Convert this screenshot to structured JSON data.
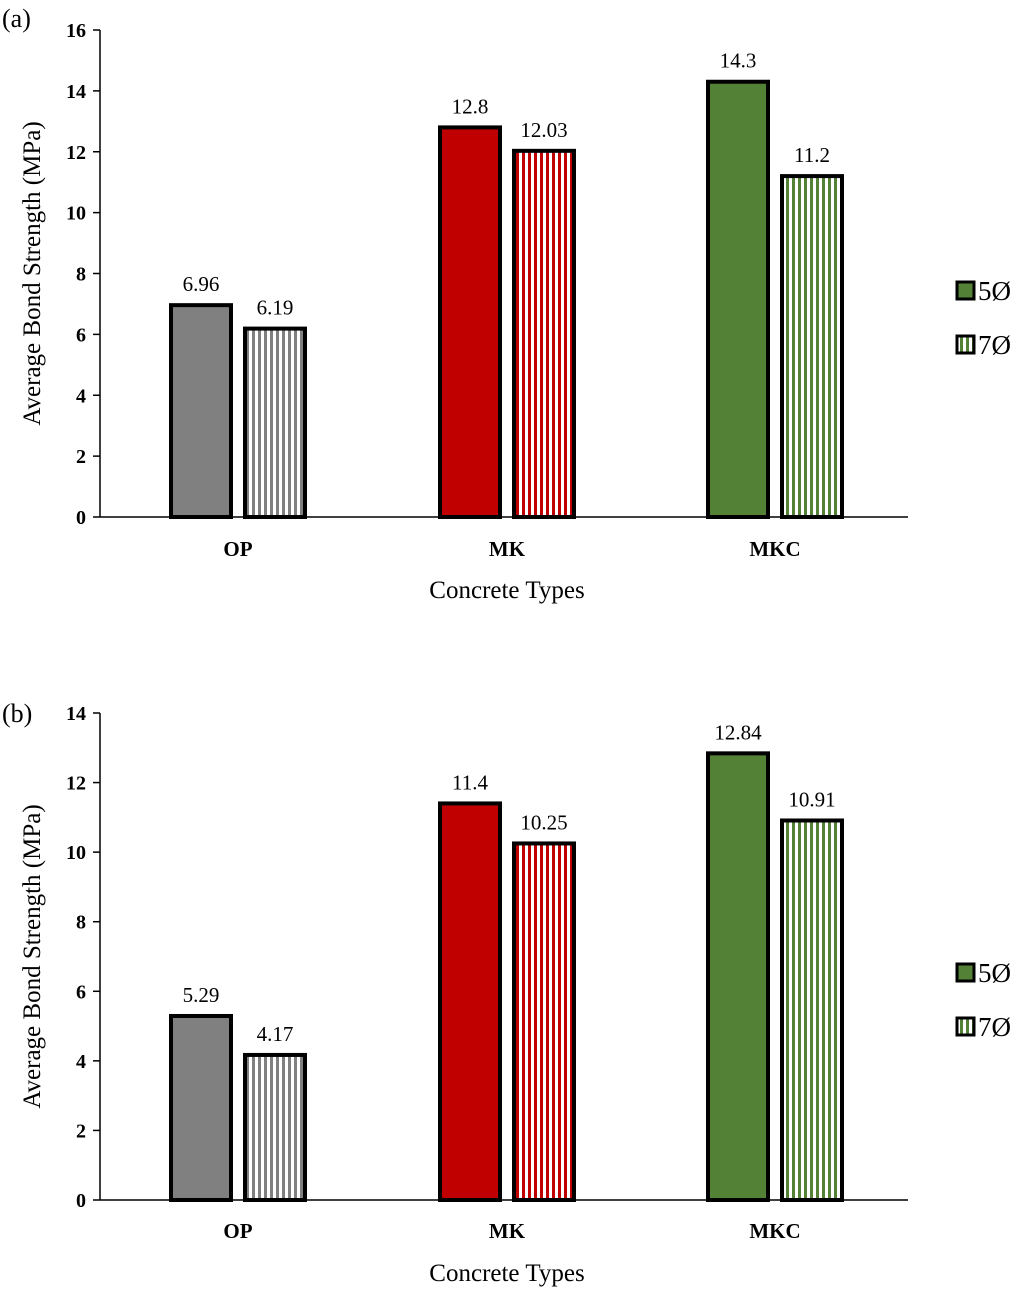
{
  "chart_data": [
    {
      "panel_label": "(a)",
      "type": "bar",
      "categories": [
        "OP",
        "MK",
        "MKC"
      ],
      "series": [
        {
          "name": "5Ø",
          "values": [
            6.96,
            12.8,
            14.3
          ]
        },
        {
          "name": "7Ø",
          "values": [
            6.19,
            12.03,
            11.2
          ]
        }
      ],
      "data_labels": [
        [
          "6.96",
          "12.8",
          "14.3"
        ],
        [
          "6.19",
          "12.03",
          "11.2"
        ]
      ],
      "xlabel": "Concrete Types",
      "ylabel": "Average Bond Strength (MPa)",
      "ylim": [
        0,
        16
      ],
      "yticks": [
        0,
        2,
        4,
        6,
        8,
        10,
        12,
        14,
        16
      ],
      "grid": false,
      "legend_position": "right"
    },
    {
      "panel_label": "(b)",
      "type": "bar",
      "categories": [
        "OP",
        "MK",
        "MKC"
      ],
      "series": [
        {
          "name": "5Ø",
          "values": [
            5.29,
            11.4,
            12.84
          ]
        },
        {
          "name": "7Ø",
          "values": [
            4.17,
            10.25,
            10.91
          ]
        }
      ],
      "data_labels": [
        [
          "5.29",
          "11.4",
          "12.84"
        ],
        [
          "4.17",
          "10.25",
          "10.91"
        ]
      ],
      "xlabel": "Concrete Types",
      "ylabel": "Average Bond Strength (MPa)",
      "ylim": [
        0,
        14
      ],
      "yticks": [
        0,
        2,
        4,
        6,
        8,
        10,
        12,
        14
      ],
      "grid": false,
      "legend_position": "right"
    }
  ],
  "colors": {
    "OP": "#808080",
    "MK": "#c00000",
    "MKC": "#538135",
    "legend_swatch": "#538135",
    "outline": "#000000"
  }
}
